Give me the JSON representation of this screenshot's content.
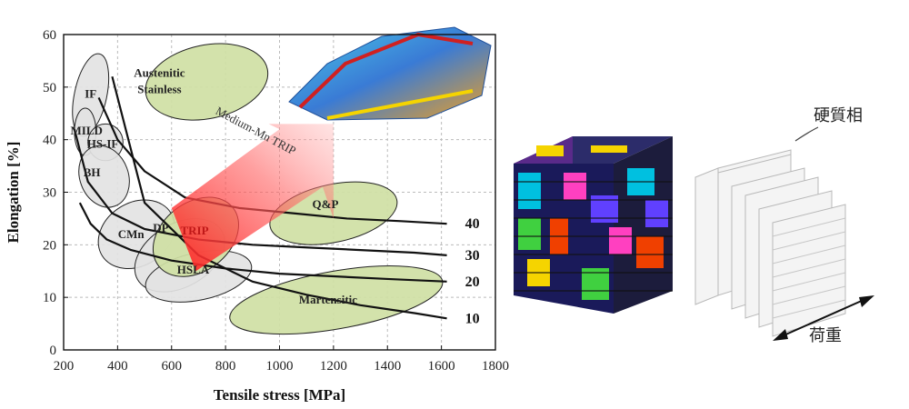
{
  "chart_data": {
    "type": "scatter",
    "xlabel": "Tensile stress [MPa]",
    "ylabel": "Elongation [%]",
    "xlim": [
      200,
      1800
    ],
    "ylim": [
      0,
      60
    ],
    "x_ticks": [
      "200",
      "400",
      "600",
      "800",
      "1000",
      "1200",
      "1400",
      "1600",
      "1800"
    ],
    "y_ticks": [
      "0",
      "10",
      "20",
      "30",
      "40",
      "50",
      "60"
    ],
    "grid": true,
    "regions": [
      {
        "label": "IF",
        "cx": 300,
        "cy": 48.5,
        "rx": 60,
        "ry": 8,
        "rot": 12,
        "fill": "#e3e3e3"
      },
      {
        "label": "MILD",
        "cx": 280,
        "cy": 41.5,
        "rx": 40,
        "ry": 4.5,
        "rot": 0,
        "fill": "#e3e3e3"
      },
      {
        "label": "HS-IF",
        "cx": 355,
        "cy": 39.5,
        "rx": 65,
        "ry": 3.5,
        "rot": 0,
        "fill": "#e3e3e3"
      },
      {
        "label": "BH",
        "cx": 350,
        "cy": 33,
        "rx": 90,
        "ry": 6,
        "rot": -20,
        "fill": "#e3e3e3"
      },
      {
        "label": "CMn",
        "cx": 470,
        "cy": 22,
        "rx": 150,
        "ry": 6,
        "rot": -32,
        "fill": "#e3e3e3"
      },
      {
        "label": "DP",
        "cx": 630,
        "cy": 18,
        "rx": 180,
        "ry": 6,
        "rot": -30,
        "fill": "#e3e3e3"
      },
      {
        "label": "HSLA",
        "cx": 700,
        "cy": 14,
        "rx": 200,
        "ry": 4.5,
        "rot": -12,
        "fill": "#e3e3e3"
      },
      {
        "label": "TRIP",
        "cx": 690,
        "cy": 21.5,
        "rx": 175,
        "ry": 6.5,
        "rot": -38,
        "fill": "#cfe0a4"
      },
      {
        "label": "Austenitic Stainless",
        "cx": 730,
        "cy": 51,
        "rx": 230,
        "ry": 7,
        "rot": -12,
        "fill": "#cfe0a4"
      },
      {
        "label": "Q&P",
        "cx": 1200,
        "cy": 26,
        "rx": 240,
        "ry": 5.5,
        "rot": -12,
        "fill": "#cfe0a4"
      },
      {
        "label": "Martensitic",
        "cx": 1210,
        "cy": 9.5,
        "rx": 400,
        "ry": 5.5,
        "rot": -10,
        "fill": "#cfe0a4"
      }
    ],
    "series": [
      {
        "name": "10",
        "x": [
          380,
          500,
          700,
          900,
          1100,
          1300,
          1500,
          1620
        ],
        "y": [
          52,
          28,
          18,
          13,
          10.5,
          8.5,
          7,
          6
        ]
      },
      {
        "name": "20",
        "x": [
          260,
          300,
          360,
          450,
          600,
          800,
          1000,
          1200,
          1400,
          1620
        ],
        "y": [
          28,
          24,
          21,
          19,
          17,
          15.5,
          14.5,
          14,
          13.5,
          13
        ]
      },
      {
        "name": "30",
        "x": [
          240,
          290,
          380,
          500,
          700,
          900,
          1100,
          1300,
          1500,
          1620
        ],
        "y": [
          42,
          32,
          26,
          23,
          21,
          20,
          19.5,
          19,
          18.5,
          18
        ]
      },
      {
        "name": "40",
        "x": [
          330,
          400,
          500,
          650,
          850,
          1050,
          1250,
          1450,
          1620
        ],
        "y": [
          48,
          40,
          34,
          29,
          27,
          26,
          25,
          24.5,
          24
        ]
      }
    ],
    "annotations": [
      "Medium-Mn TRIP"
    ]
  },
  "figure": {
    "label_hard_phase": "硬質相",
    "label_load": "荷重"
  },
  "colors": {
    "green_region": "#cfe0a4",
    "gray_region": "#e3e3e3",
    "arrow_red": "#ff3030"
  }
}
